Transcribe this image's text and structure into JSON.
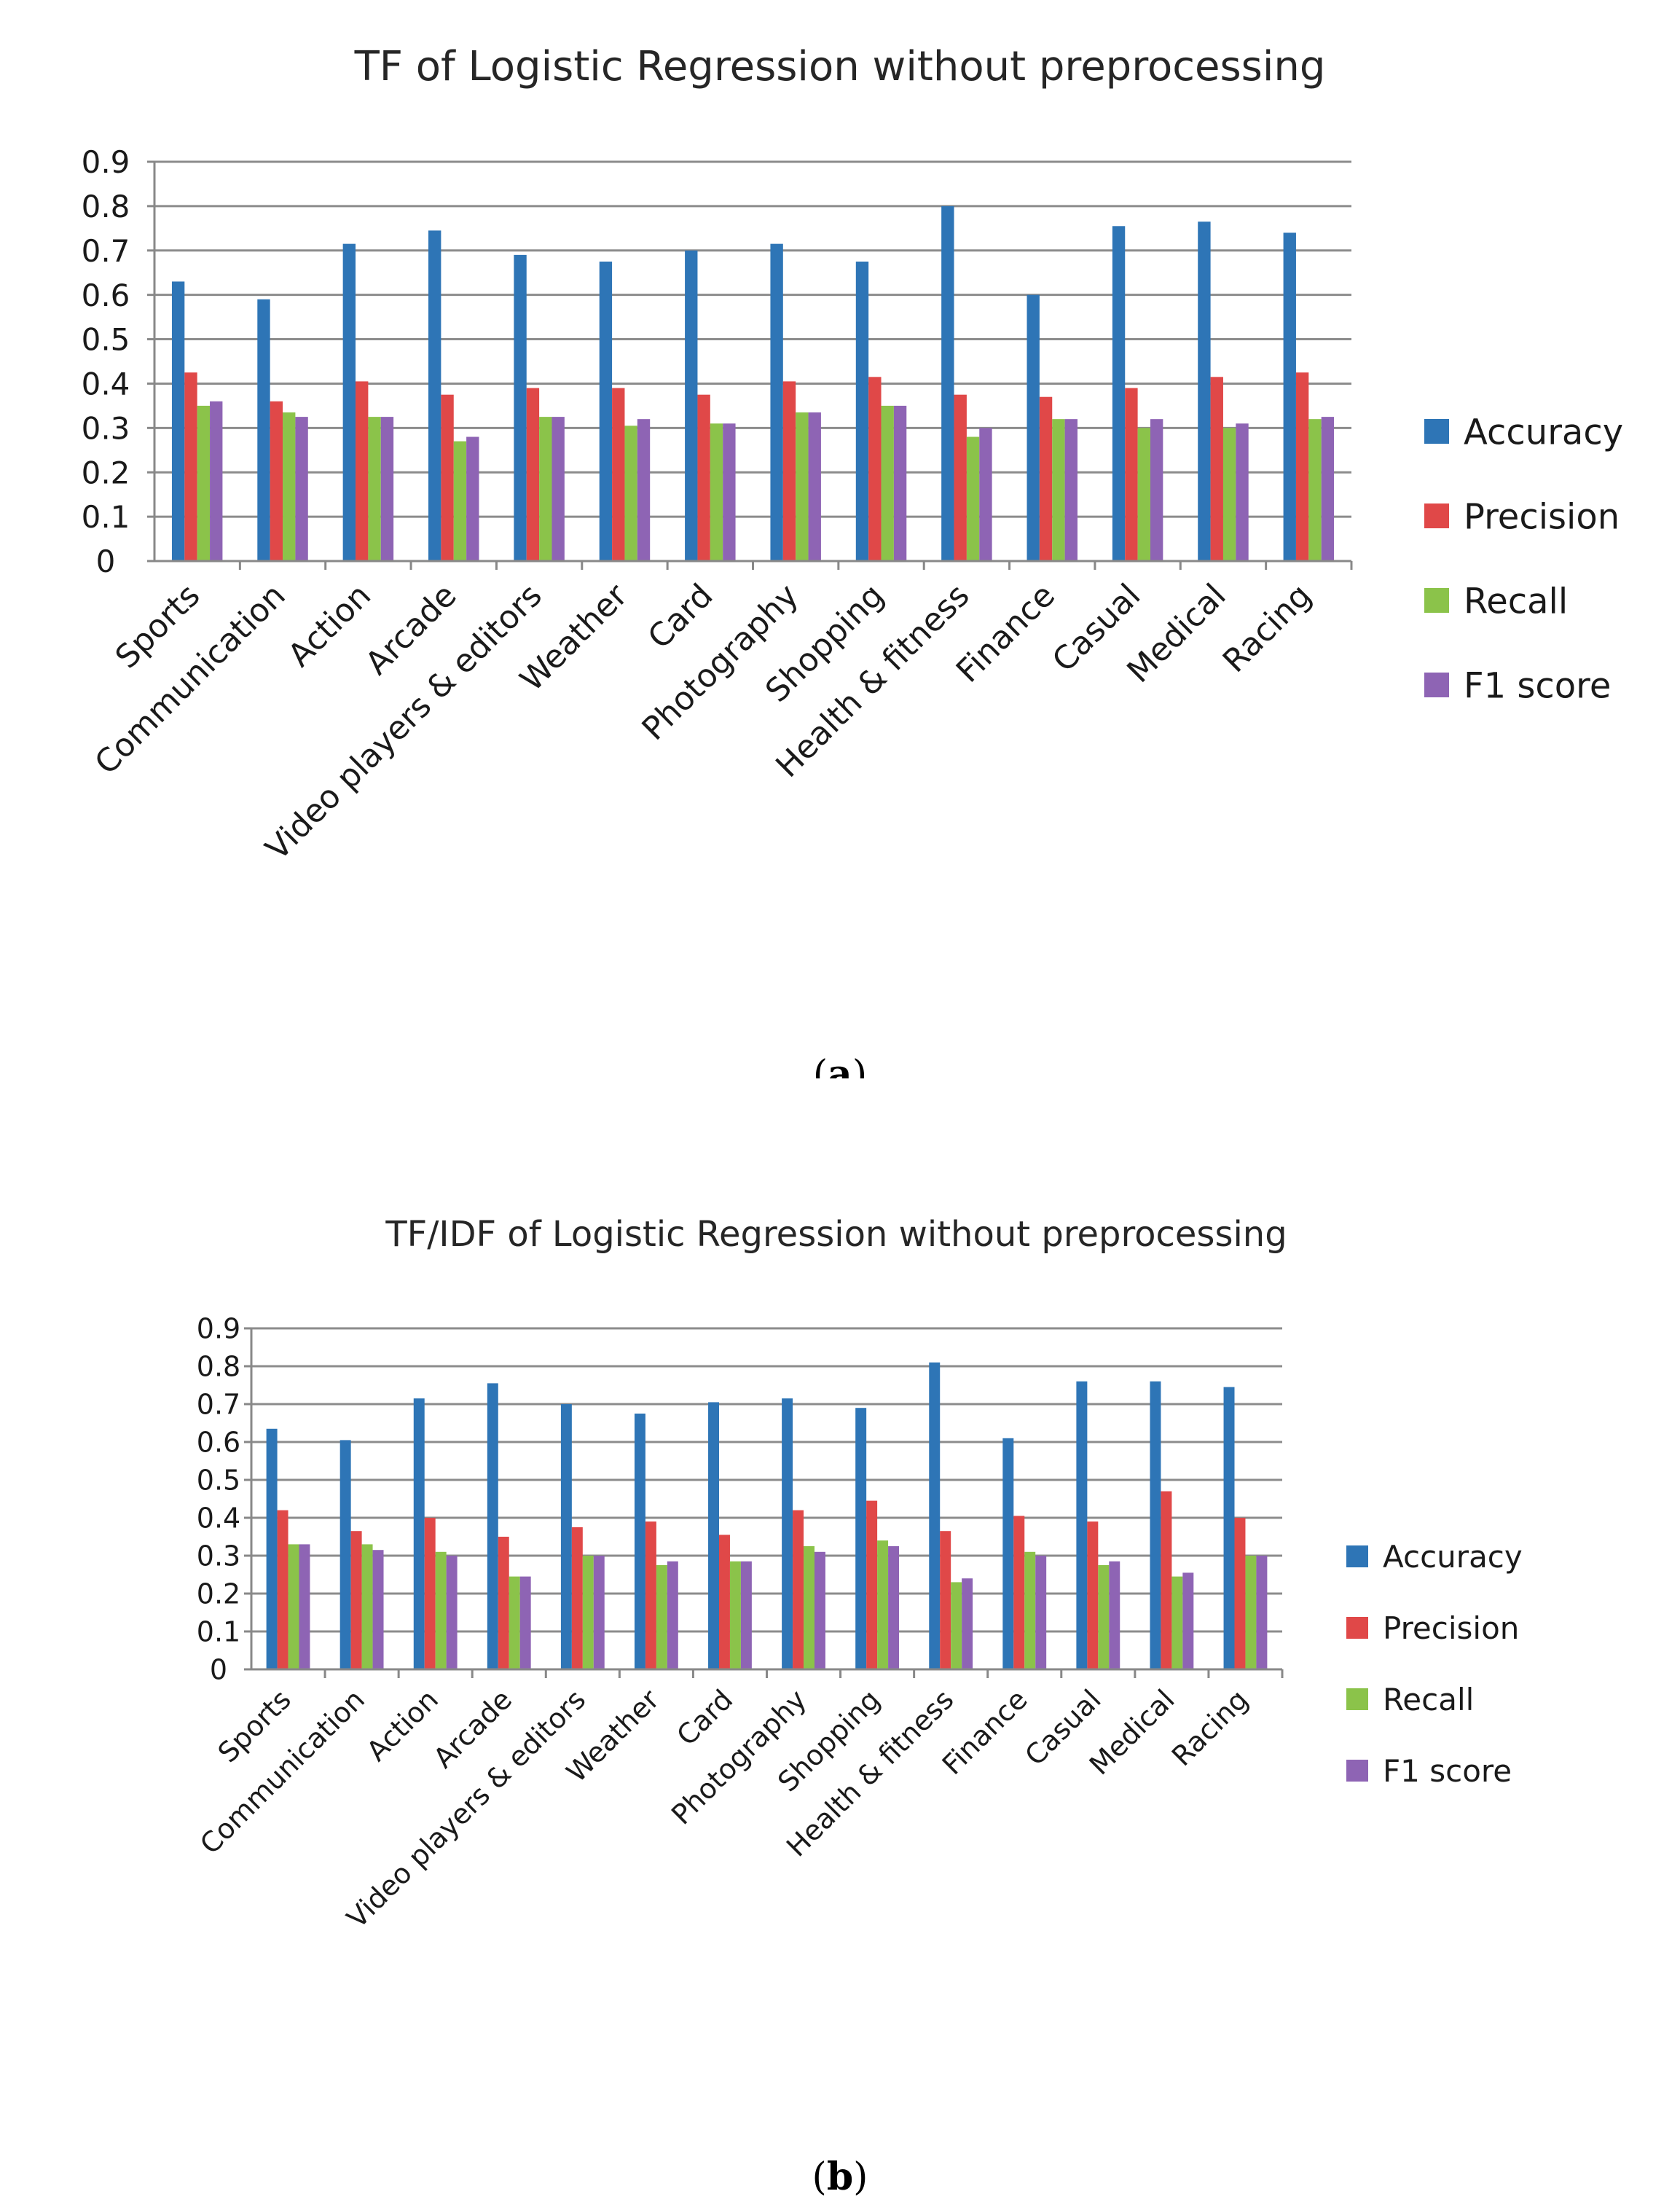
{
  "chart_data": [
    {
      "type": "bar",
      "title": "TF of Logistic Regression without preprocessing",
      "caption_label": "a",
      "xlabel": "",
      "ylabel": "",
      "ylim": [
        0,
        0.9
      ],
      "y_ticks": [
        "0",
        "0.1",
        "0.2",
        "0.3",
        "0.4",
        "0.5",
        "0.6",
        "0.7",
        "0.8",
        "0.9"
      ],
      "grid": true,
      "legend_position": "right",
      "categories": [
        "Sports",
        "Communication",
        "Action",
        "Arcade",
        "Video players & editors",
        "Weather",
        "Card",
        "Photography",
        "Shopping",
        "Health & fitness",
        "Finance",
        "Casual",
        "Medical",
        "Racing"
      ],
      "series": [
        {
          "name": "Accuracy",
          "color": "#2e75b6",
          "values": [
            0.63,
            0.59,
            0.715,
            0.745,
            0.69,
            0.675,
            0.7,
            0.715,
            0.675,
            0.8,
            0.6,
            0.755,
            0.765,
            0.74
          ]
        },
        {
          "name": "Precision",
          "color": "#e04848",
          "values": [
            0.425,
            0.36,
            0.405,
            0.375,
            0.39,
            0.39,
            0.375,
            0.405,
            0.415,
            0.375,
            0.37,
            0.39,
            0.415,
            0.425
          ]
        },
        {
          "name": "Recall",
          "color": "#8bc34a",
          "values": [
            0.35,
            0.335,
            0.325,
            0.27,
            0.325,
            0.305,
            0.31,
            0.335,
            0.35,
            0.28,
            0.32,
            0.3,
            0.3,
            0.32
          ]
        },
        {
          "name": "F1 score",
          "color": "#8e64b4",
          "values": [
            0.36,
            0.325,
            0.325,
            0.28,
            0.325,
            0.32,
            0.31,
            0.335,
            0.35,
            0.3,
            0.32,
            0.32,
            0.31,
            0.325
          ]
        }
      ]
    },
    {
      "type": "bar",
      "title": "TF/IDF of Logistic Regression without preprocessing",
      "caption_label": "b",
      "xlabel": "",
      "ylabel": "",
      "ylim": [
        0,
        0.9
      ],
      "y_ticks": [
        "0",
        "0.1",
        "0.2",
        "0.3",
        "0.4",
        "0.5",
        "0.6",
        "0.7",
        "0.8",
        "0.9"
      ],
      "grid": true,
      "legend_position": "right",
      "categories": [
        "Sports",
        "Communication",
        "Action",
        "Arcade",
        "Video players & editors",
        "Weather",
        "Card",
        "Photography",
        "Shopping",
        "Health & fitness",
        "Finance",
        "Casual",
        "Medical",
        "Racing"
      ],
      "series": [
        {
          "name": "Accuracy",
          "color": "#2e75b6",
          "values": [
            0.635,
            0.605,
            0.715,
            0.755,
            0.7,
            0.675,
            0.705,
            0.715,
            0.69,
            0.81,
            0.61,
            0.76,
            0.76,
            0.745
          ]
        },
        {
          "name": "Precision",
          "color": "#e04848",
          "values": [
            0.42,
            0.365,
            0.4,
            0.35,
            0.375,
            0.39,
            0.355,
            0.42,
            0.445,
            0.365,
            0.405,
            0.39,
            0.47,
            0.4
          ]
        },
        {
          "name": "Recall",
          "color": "#8bc34a",
          "values": [
            0.33,
            0.33,
            0.31,
            0.245,
            0.3,
            0.275,
            0.285,
            0.325,
            0.34,
            0.23,
            0.31,
            0.275,
            0.245,
            0.3
          ]
        },
        {
          "name": "F1 score",
          "color": "#8e64b4",
          "values": [
            0.33,
            0.315,
            0.3,
            0.245,
            0.3,
            0.285,
            0.285,
            0.31,
            0.325,
            0.24,
            0.3,
            0.285,
            0.255,
            0.3
          ]
        }
      ]
    }
  ]
}
